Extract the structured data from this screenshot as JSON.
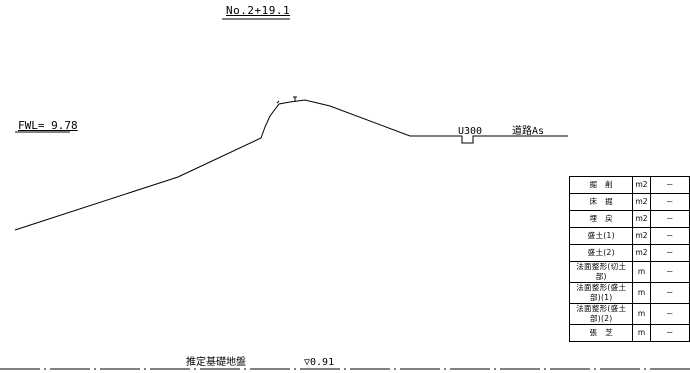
{
  "station": "No.2+19.1",
  "fwl": "FWL= 9.78",
  "drain_label": "U300",
  "road_label": "道路As",
  "founding_label": "推定基礎地盤",
  "datum_label": "▽0.91",
  "quantity_table": {
    "rows": [
      {
        "item": "掘　削",
        "unit": "m2",
        "value": "－"
      },
      {
        "item": "床　掘",
        "unit": "m2",
        "value": "－"
      },
      {
        "item": "埋　戻",
        "unit": "m2",
        "value": "－"
      },
      {
        "item": "盛土(1)",
        "unit": "m2",
        "value": "－"
      },
      {
        "item": "盛土(2)",
        "unit": "m2",
        "value": "－"
      },
      {
        "item": "法面整形(切土部)",
        "unit": "m",
        "value": "－"
      },
      {
        "item": "法面整形(盛土部)(1)",
        "unit": "m",
        "value": "－"
      },
      {
        "item": "法面整形(盛土部)(2)",
        "unit": "m",
        "value": "－"
      },
      {
        "item": "張　芝",
        "unit": "m",
        "value": "－"
      }
    ]
  }
}
